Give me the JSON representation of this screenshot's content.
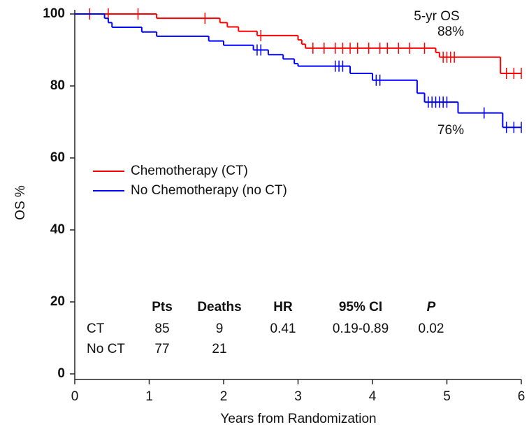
{
  "chart_data": {
    "type": "km",
    "y_label": "OS %",
    "x_label": "Years from Randomization",
    "xlim": [
      0,
      6
    ],
    "xticks": [
      0,
      1,
      2,
      3,
      4,
      5,
      6
    ],
    "ylim": [
      0,
      100
    ],
    "yticks": [
      0,
      20,
      40,
      60,
      80,
      100
    ],
    "series": [
      {
        "name": "Chemotherapy (CT)",
        "color": "#ff0000",
        "x": [
          0,
          1.1,
          1.95,
          2.05,
          2.2,
          2.45,
          3.0,
          3.05,
          3.1,
          4.85,
          4.9,
          5.72,
          6.0
        ],
        "values": [
          100,
          98.8,
          97.6,
          96.4,
          95.2,
          94,
          92.8,
          91.6,
          90.5,
          89.3,
          88,
          83.5,
          83.5
        ],
        "censored_x": [
          0.2,
          0.45,
          0.85,
          1.75,
          2.5,
          3.2,
          3.35,
          3.5,
          3.6,
          3.7,
          3.8,
          3.95,
          4.1,
          4.2,
          4.35,
          4.5,
          4.7,
          4.95,
          5.0,
          5.05,
          5.1,
          5.8,
          5.9,
          6.0
        ],
        "censored_y": [
          100,
          100,
          100,
          98.8,
          94,
          90.5,
          90.5,
          90.5,
          90.5,
          90.5,
          90.5,
          90.5,
          90.5,
          90.5,
          90.5,
          90.5,
          90.5,
          88,
          88,
          88,
          88,
          83.5,
          83.5,
          83.5
        ]
      },
      {
        "name": "No Chemotherapy (no CT)",
        "color": "#0000ff",
        "x": [
          0,
          0.4,
          0.45,
          0.5,
          0.9,
          1.1,
          1.8,
          2.0,
          2.4,
          2.6,
          2.8,
          2.95,
          3.0,
          3.7,
          4.0,
          4.6,
          4.7,
          5.15,
          5.75,
          6.0
        ],
        "values": [
          100,
          98.8,
          97.6,
          96.3,
          95,
          93.8,
          92.5,
          91.3,
          90,
          88.7,
          87.5,
          86.2,
          85.5,
          83.5,
          81.6,
          78,
          75.5,
          72.5,
          68.5,
          68.5
        ],
        "censored_x": [
          2.45,
          2.5,
          3.5,
          3.55,
          3.6,
          4.05,
          4.1,
          4.75,
          4.8,
          4.85,
          4.9,
          4.95,
          5.0,
          5.5,
          5.8,
          5.9,
          6.0
        ],
        "censored_y": [
          90,
          90,
          85.5,
          85.5,
          85.5,
          81.6,
          81.6,
          75.5,
          75.5,
          75.5,
          75.5,
          75.5,
          75.5,
          72.5,
          68.5,
          68.5,
          68.5
        ]
      }
    ],
    "annotations": [
      "5-yr OS",
      "88%",
      "76%"
    ],
    "table": {
      "header": [
        "Pts",
        "Deaths",
        "HR",
        "95% CI",
        "P"
      ],
      "rows": [
        [
          "CT",
          "85",
          "9",
          "0.41",
          "0.19-0.89",
          "0.02"
        ],
        [
          "No CT",
          "77",
          "21"
        ]
      ]
    }
  }
}
